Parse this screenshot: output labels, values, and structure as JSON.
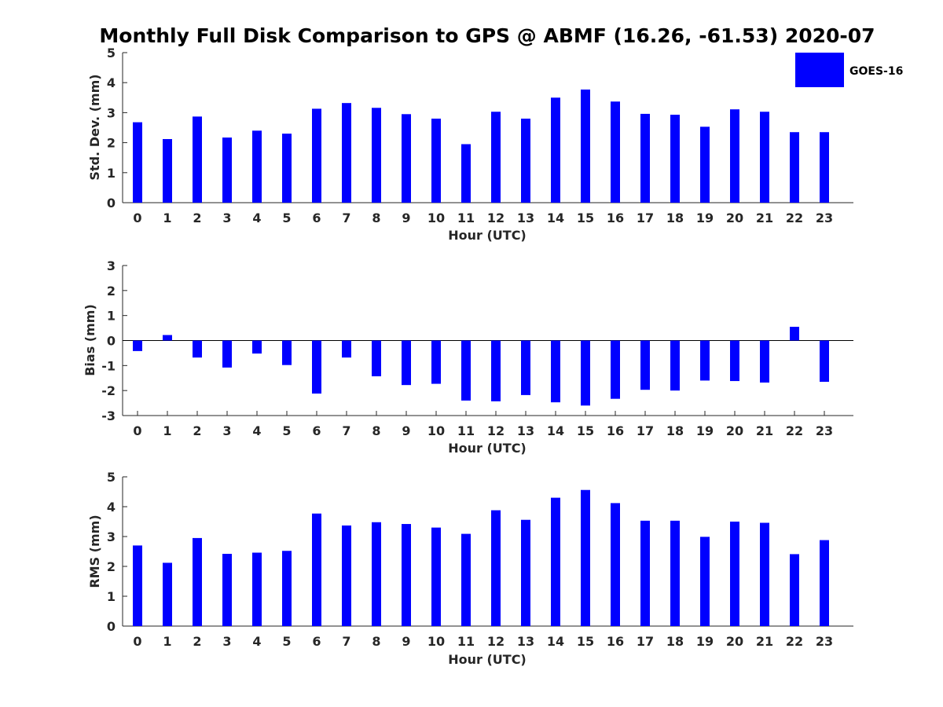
{
  "title": "Monthly Full Disk Comparison to GPS @ ABMF (16.26, -61.53) 2020-07",
  "legend": {
    "label": "GOES-16",
    "color": "#0000ff",
    "placement": "top-right"
  },
  "chart_data": [
    {
      "type": "bar",
      "xlabel": "Hour (UTC)",
      "ylabel": "Std. Dev. (mm)",
      "ylim": [
        0,
        5
      ],
      "yticks": [
        0,
        1,
        2,
        3,
        4,
        5
      ],
      "categories": [
        0,
        1,
        2,
        3,
        4,
        5,
        6,
        7,
        8,
        9,
        10,
        11,
        12,
        13,
        14,
        15,
        16,
        17,
        18,
        19,
        20,
        21,
        22,
        23
      ],
      "series": [
        {
          "name": "GOES-16",
          "color": "#0000ff",
          "values": [
            2.68,
            2.12,
            2.87,
            2.17,
            2.4,
            2.3,
            3.13,
            3.32,
            3.16,
            2.95,
            2.8,
            1.95,
            3.03,
            2.8,
            3.5,
            3.77,
            3.37,
            2.96,
            2.93,
            2.53,
            3.11,
            3.03,
            2.35,
            2.35
          ]
        }
      ]
    },
    {
      "type": "bar",
      "xlabel": "Hour (UTC)",
      "ylabel": "Bias (mm)",
      "ylim": [
        -3,
        3
      ],
      "yticks": [
        -3,
        -2,
        -1,
        0,
        1,
        2,
        3
      ],
      "categories": [
        0,
        1,
        2,
        3,
        4,
        5,
        6,
        7,
        8,
        9,
        10,
        11,
        12,
        13,
        14,
        15,
        16,
        17,
        18,
        19,
        20,
        21,
        22,
        23
      ],
      "series": [
        {
          "name": "GOES-16",
          "color": "#0000ff",
          "values": [
            -0.42,
            0.22,
            -0.68,
            -1.08,
            -0.52,
            -0.98,
            -2.12,
            -0.68,
            -1.43,
            -1.78,
            -1.73,
            -2.4,
            -2.43,
            -2.18,
            -2.47,
            -2.6,
            -2.33,
            -1.97,
            -2.0,
            -1.6,
            -1.62,
            -1.68,
            0.55,
            -1.65
          ]
        }
      ]
    },
    {
      "type": "bar",
      "xlabel": "Hour (UTC)",
      "ylabel": "RMS (mm)",
      "ylim": [
        0,
        5
      ],
      "yticks": [
        0,
        1,
        2,
        3,
        4,
        5
      ],
      "categories": [
        0,
        1,
        2,
        3,
        4,
        5,
        6,
        7,
        8,
        9,
        10,
        11,
        12,
        13,
        14,
        15,
        16,
        17,
        18,
        19,
        20,
        21,
        22,
        23
      ],
      "series": [
        {
          "name": "GOES-16",
          "color": "#0000ff",
          "values": [
            2.7,
            2.12,
            2.95,
            2.42,
            2.46,
            2.52,
            3.77,
            3.37,
            3.48,
            3.42,
            3.3,
            3.09,
            3.88,
            3.56,
            4.3,
            4.56,
            4.12,
            3.53,
            3.53,
            2.99,
            3.5,
            3.46,
            2.41,
            2.88
          ]
        }
      ]
    }
  ]
}
